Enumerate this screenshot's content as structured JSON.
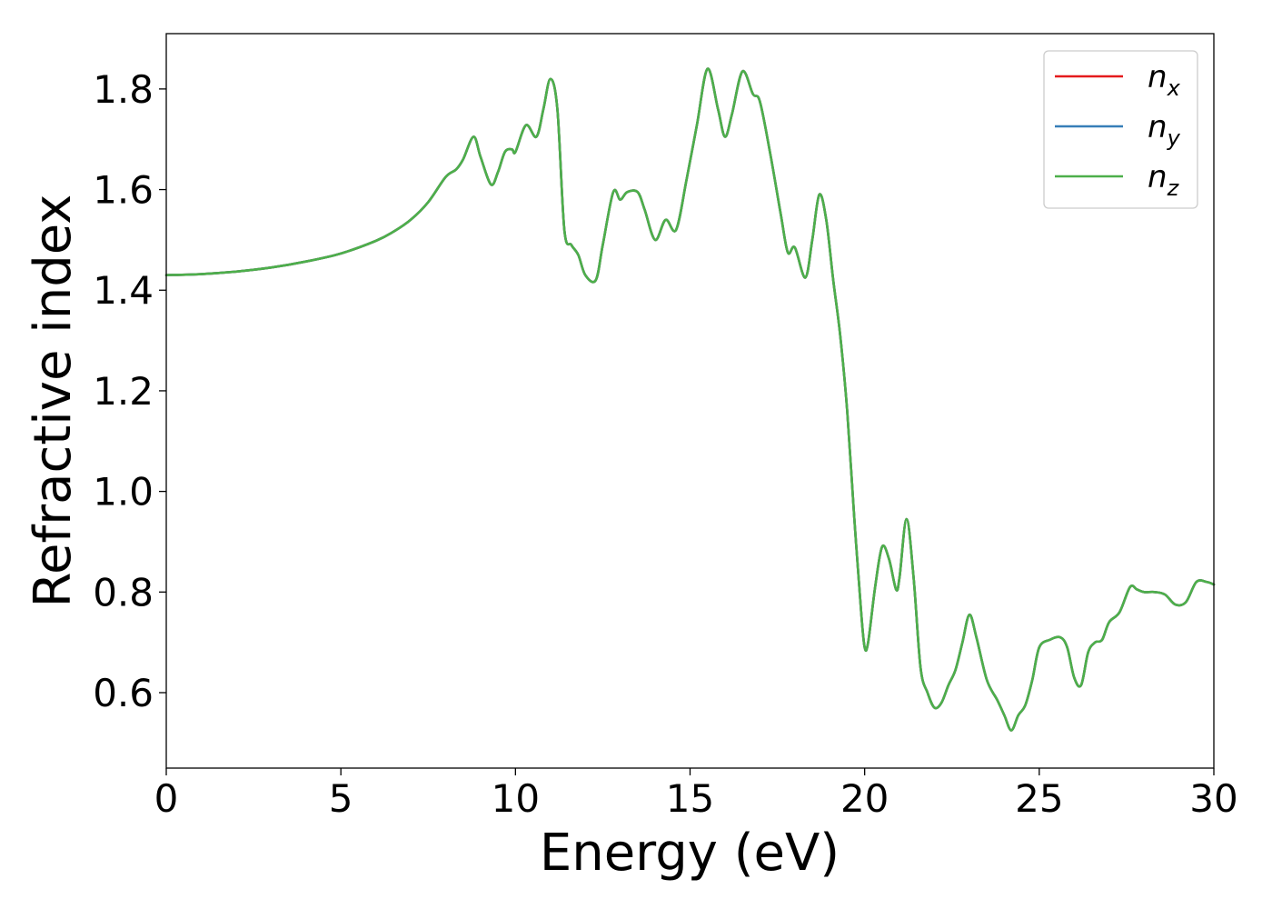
{
  "chart_data": {
    "type": "line",
    "title": "",
    "xlabel": "Energy (eV)",
    "ylabel": "Refractive index",
    "xlim": [
      0,
      30
    ],
    "ylim": [
      0.45,
      1.91
    ],
    "xticks": [
      0,
      5,
      10,
      15,
      20,
      25,
      30
    ],
    "yticks": [
      0.6,
      0.8,
      1.0,
      1.2,
      1.4,
      1.6,
      1.8
    ],
    "xtick_labels": [
      "0",
      "5",
      "10",
      "15",
      "20",
      "25",
      "30"
    ],
    "ytick_labels": [
      "0.6",
      "0.8",
      "1.0",
      "1.2",
      "1.4",
      "1.6",
      "1.8"
    ],
    "grid": false,
    "legend_position": "top-right",
    "x": [
      0,
      1,
      2,
      3,
      4,
      5,
      6,
      6.5,
      7,
      7.5,
      8,
      8.3,
      8.5,
      8.8,
      9.0,
      9.3,
      9.5,
      9.7,
      9.9,
      10.0,
      10.3,
      10.6,
      10.8,
      11.0,
      11.2,
      11.4,
      11.6,
      11.8,
      12.0,
      12.3,
      12.5,
      12.8,
      13.0,
      13.2,
      13.5,
      13.7,
      14.0,
      14.3,
      14.6,
      14.9,
      15.2,
      15.5,
      15.8,
      16.0,
      16.2,
      16.5,
      16.8,
      17.0,
      17.3,
      17.6,
      17.8,
      18.0,
      18.3,
      18.5,
      18.7,
      18.9,
      19.1,
      19.3,
      19.5,
      19.7,
      19.9,
      20.0,
      20.1,
      20.3,
      20.5,
      20.7,
      20.9,
      21.0,
      21.2,
      21.4,
      21.6,
      21.8,
      22.0,
      22.2,
      22.4,
      22.6,
      22.8,
      23.0,
      23.2,
      23.5,
      23.8,
      24.0,
      24.2,
      24.4,
      24.6,
      24.8,
      25.0,
      25.3,
      25.6,
      25.8,
      26.0,
      26.2,
      26.4,
      26.6,
      26.8,
      27.0,
      27.3,
      27.6,
      27.8,
      28.0,
      28.3,
      28.6,
      28.9,
      29.2,
      29.5,
      29.8,
      30.0
    ],
    "series": [
      {
        "name": "n_x",
        "color": "#e41a1c",
        "y": [
          1.43,
          1.432,
          1.437,
          1.445,
          1.457,
          1.473,
          1.498,
          1.516,
          1.54,
          1.575,
          1.625,
          1.64,
          1.66,
          1.705,
          1.665,
          1.61,
          1.635,
          1.675,
          1.68,
          1.675,
          1.728,
          1.705,
          1.76,
          1.82,
          1.76,
          1.52,
          1.49,
          1.47,
          1.43,
          1.42,
          1.49,
          1.595,
          1.58,
          1.595,
          1.595,
          1.56,
          1.5,
          1.54,
          1.52,
          1.62,
          1.73,
          1.84,
          1.76,
          1.705,
          1.75,
          1.835,
          1.79,
          1.775,
          1.67,
          1.55,
          1.475,
          1.485,
          1.425,
          1.5,
          1.59,
          1.54,
          1.42,
          1.31,
          1.16,
          0.95,
          0.76,
          0.69,
          0.7,
          0.81,
          0.89,
          0.865,
          0.805,
          0.83,
          0.945,
          0.83,
          0.65,
          0.6,
          0.57,
          0.58,
          0.615,
          0.645,
          0.7,
          0.755,
          0.71,
          0.625,
          0.585,
          0.555,
          0.525,
          0.555,
          0.575,
          0.625,
          0.69,
          0.705,
          0.71,
          0.69,
          0.63,
          0.615,
          0.68,
          0.7,
          0.705,
          0.74,
          0.76,
          0.81,
          0.805,
          0.8,
          0.8,
          0.795,
          0.775,
          0.78,
          0.82,
          0.82,
          0.815
        ]
      },
      {
        "name": "n_y",
        "color": "#377eb8",
        "y": [
          1.43,
          1.432,
          1.437,
          1.445,
          1.457,
          1.473,
          1.498,
          1.516,
          1.54,
          1.575,
          1.625,
          1.64,
          1.66,
          1.705,
          1.665,
          1.61,
          1.635,
          1.675,
          1.68,
          1.675,
          1.728,
          1.705,
          1.76,
          1.82,
          1.76,
          1.52,
          1.49,
          1.47,
          1.43,
          1.42,
          1.49,
          1.595,
          1.58,
          1.595,
          1.595,
          1.56,
          1.5,
          1.54,
          1.52,
          1.62,
          1.73,
          1.84,
          1.76,
          1.705,
          1.75,
          1.835,
          1.79,
          1.775,
          1.67,
          1.55,
          1.475,
          1.485,
          1.425,
          1.5,
          1.59,
          1.54,
          1.42,
          1.31,
          1.16,
          0.95,
          0.76,
          0.69,
          0.7,
          0.81,
          0.89,
          0.865,
          0.805,
          0.83,
          0.945,
          0.83,
          0.65,
          0.6,
          0.57,
          0.58,
          0.615,
          0.645,
          0.7,
          0.755,
          0.71,
          0.625,
          0.585,
          0.555,
          0.525,
          0.555,
          0.575,
          0.625,
          0.69,
          0.705,
          0.71,
          0.69,
          0.63,
          0.615,
          0.68,
          0.7,
          0.705,
          0.74,
          0.76,
          0.81,
          0.805,
          0.8,
          0.8,
          0.795,
          0.775,
          0.78,
          0.82,
          0.82,
          0.815
        ]
      },
      {
        "name": "n_z",
        "color": "#4daf4a",
        "y": [
          1.43,
          1.432,
          1.437,
          1.445,
          1.457,
          1.473,
          1.498,
          1.516,
          1.54,
          1.575,
          1.625,
          1.64,
          1.66,
          1.705,
          1.665,
          1.61,
          1.635,
          1.675,
          1.68,
          1.675,
          1.728,
          1.705,
          1.76,
          1.82,
          1.76,
          1.52,
          1.49,
          1.47,
          1.43,
          1.42,
          1.49,
          1.595,
          1.58,
          1.595,
          1.595,
          1.56,
          1.5,
          1.54,
          1.52,
          1.62,
          1.73,
          1.84,
          1.76,
          1.705,
          1.75,
          1.835,
          1.79,
          1.775,
          1.67,
          1.55,
          1.475,
          1.485,
          1.425,
          1.5,
          1.59,
          1.54,
          1.42,
          1.31,
          1.16,
          0.95,
          0.76,
          0.69,
          0.7,
          0.81,
          0.89,
          0.865,
          0.805,
          0.83,
          0.945,
          0.83,
          0.65,
          0.6,
          0.57,
          0.58,
          0.615,
          0.645,
          0.7,
          0.755,
          0.71,
          0.625,
          0.585,
          0.555,
          0.525,
          0.555,
          0.575,
          0.625,
          0.69,
          0.705,
          0.71,
          0.69,
          0.63,
          0.615,
          0.68,
          0.7,
          0.705,
          0.74,
          0.76,
          0.81,
          0.805,
          0.8,
          0.8,
          0.795,
          0.775,
          0.78,
          0.82,
          0.82,
          0.815
        ]
      }
    ],
    "legend": [
      {
        "base": "n",
        "sub": "x",
        "color": "#e41a1c"
      },
      {
        "base": "n",
        "sub": "y",
        "color": "#377eb8"
      },
      {
        "base": "n",
        "sub": "z",
        "color": "#4daf4a"
      }
    ]
  }
}
